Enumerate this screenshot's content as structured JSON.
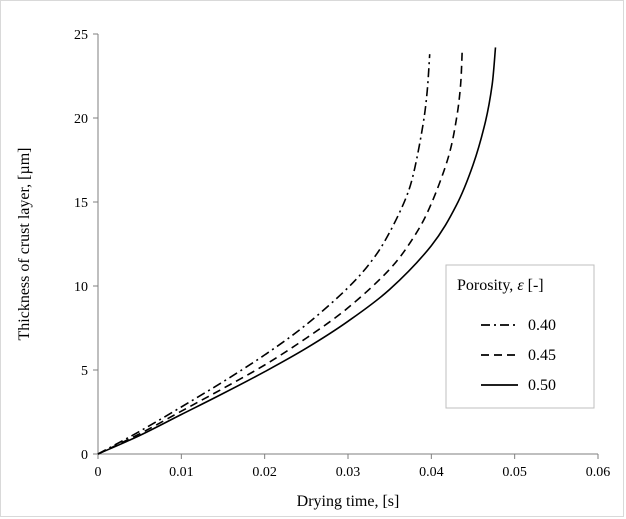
{
  "chart_data": {
    "type": "line",
    "xlabel": "Drying time, [s]",
    "ylabel": "Thickness of crust layer, [µm]",
    "xlim": [
      0,
      0.06
    ],
    "ylim": [
      0,
      25
    ],
    "x_ticks": [
      "0",
      "0.01",
      "0.02",
      "0.03",
      "0.04",
      "0.05",
      "0.06"
    ],
    "y_ticks": [
      "0",
      "5",
      "10",
      "15",
      "20",
      "25"
    ],
    "grid": false,
    "legend": {
      "title_prefix": "Porosity, ",
      "title_symbol": "ε",
      "title_suffix": " [-]",
      "placement": "right"
    },
    "series": [
      {
        "name": "0.40",
        "line_style": "dash-dot",
        "color": "#000000",
        "points": [
          [
            0,
            0
          ],
          [
            0.005,
            1.35
          ],
          [
            0.01,
            2.8
          ],
          [
            0.015,
            4.3
          ],
          [
            0.02,
            5.9
          ],
          [
            0.025,
            7.7
          ],
          [
            0.03,
            9.9
          ],
          [
            0.033,
            11.6
          ],
          [
            0.035,
            13.2
          ],
          [
            0.037,
            15.3
          ],
          [
            0.038,
            17.0
          ],
          [
            0.039,
            19.6
          ],
          [
            0.0395,
            21.6
          ],
          [
            0.0398,
            23.8
          ]
        ]
      },
      {
        "name": "0.45",
        "line_style": "dashed",
        "color": "#000000",
        "points": [
          [
            0,
            0
          ],
          [
            0.005,
            1.2
          ],
          [
            0.01,
            2.55
          ],
          [
            0.015,
            3.9
          ],
          [
            0.02,
            5.3
          ],
          [
            0.025,
            6.9
          ],
          [
            0.03,
            8.7
          ],
          [
            0.035,
            11.0
          ],
          [
            0.038,
            13.0
          ],
          [
            0.04,
            14.9
          ],
          [
            0.042,
            17.6
          ],
          [
            0.043,
            19.9
          ],
          [
            0.0435,
            21.9
          ],
          [
            0.0437,
            24.0
          ]
        ]
      },
      {
        "name": "0.50",
        "line_style": "solid",
        "color": "#000000",
        "points": [
          [
            0,
            0
          ],
          [
            0.005,
            1.1
          ],
          [
            0.01,
            2.35
          ],
          [
            0.015,
            3.6
          ],
          [
            0.02,
            4.9
          ],
          [
            0.025,
            6.3
          ],
          [
            0.03,
            7.9
          ],
          [
            0.035,
            9.8
          ],
          [
            0.04,
            12.4
          ],
          [
            0.043,
            14.8
          ],
          [
            0.045,
            17.2
          ],
          [
            0.0465,
            19.8
          ],
          [
            0.0473,
            22.0
          ],
          [
            0.0477,
            24.2
          ]
        ]
      }
    ]
  }
}
